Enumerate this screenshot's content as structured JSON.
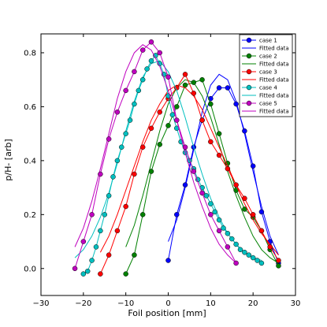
{
  "chart_data": {
    "type": "line",
    "title": "",
    "xlabel": "Foil position [mm]",
    "ylabel": "p/H- [arb]",
    "xlim": [
      -30,
      30
    ],
    "ylim": [
      -0.1,
      0.87
    ],
    "xticks": [
      -30,
      -20,
      -10,
      0,
      10,
      20,
      30
    ],
    "xtick_labels": [
      "−30",
      "−20",
      "−10",
      "0",
      "10",
      "20",
      "30"
    ],
    "yticks": [
      0.0,
      0.2,
      0.4,
      0.6,
      0.8
    ],
    "ytick_labels": [
      "0.0",
      "0.2",
      "0.4",
      "0.6",
      "0.8"
    ],
    "grid": false,
    "legend_position": "top-right",
    "legend": [
      "case 1",
      "Fitted data",
      "case 2",
      "Fitted data",
      "case 3",
      "Fitted data",
      "case 4",
      "Fitted data",
      "case 5",
      "Fitted data"
    ],
    "series": [
      {
        "name": "case 1",
        "fit_name": "Fitted data",
        "color": "#0000ff",
        "x": [
          0,
          2,
          4,
          6,
          8,
          10,
          12,
          14,
          16,
          18,
          20,
          22,
          24,
          26
        ],
        "y": [
          0.03,
          0.2,
          0.31,
          0.45,
          0.55,
          0.63,
          0.67,
          0.67,
          0.61,
          0.51,
          0.38,
          0.21,
          0.1,
          0.02
        ],
        "fit_x": [
          0,
          2,
          4,
          6,
          8,
          10,
          12,
          14,
          16,
          18,
          20,
          22,
          24,
          26
        ],
        "fit_y": [
          0.1,
          0.18,
          0.3,
          0.44,
          0.58,
          0.68,
          0.72,
          0.7,
          0.62,
          0.5,
          0.36,
          0.23,
          0.12,
          0.05
        ]
      },
      {
        "name": "case 2",
        "fit_name": "Fitted data",
        "color": "#008000",
        "x": [
          -10,
          -8,
          -6,
          -4,
          -2,
          0,
          2,
          4,
          6,
          8,
          10,
          12,
          14,
          16,
          18,
          20,
          22,
          24,
          26
        ],
        "y": [
          -0.02,
          0.05,
          0.2,
          0.36,
          0.46,
          0.53,
          0.6,
          0.68,
          0.69,
          0.7,
          0.61,
          0.5,
          0.39,
          0.29,
          0.22,
          0.19,
          0.14,
          0.07,
          0.01
        ],
        "fit_x": [
          -10,
          -8,
          -6,
          -4,
          -2,
          0,
          2,
          4,
          6,
          8,
          10,
          12,
          14,
          16,
          18,
          20,
          22,
          24,
          26
        ],
        "fit_y": [
          0.08,
          0.16,
          0.27,
          0.39,
          0.51,
          0.61,
          0.67,
          0.7,
          0.69,
          0.64,
          0.56,
          0.46,
          0.36,
          0.27,
          0.19,
          0.12,
          0.07,
          0.04,
          0.02
        ]
      },
      {
        "name": "case 3",
        "fit_name": "Fitted data",
        "color": "#ff0000",
        "x": [
          -16,
          -14,
          -12,
          -10,
          -8,
          -6,
          -4,
          -2,
          0,
          2,
          4,
          6,
          8,
          10,
          12,
          14,
          16,
          18,
          20,
          22,
          24,
          26
        ],
        "y": [
          -0.02,
          0.05,
          0.14,
          0.23,
          0.35,
          0.45,
          0.52,
          0.58,
          0.63,
          0.67,
          0.72,
          0.65,
          0.55,
          0.47,
          0.42,
          0.37,
          0.31,
          0.26,
          0.2,
          0.14,
          0.08,
          0.03
        ],
        "fit_x": [
          -16,
          -14,
          -12,
          -10,
          -8,
          -6,
          -4,
          -2,
          0,
          2,
          4,
          6,
          8,
          10,
          12,
          14,
          16,
          18,
          20,
          22,
          24,
          26
        ],
        "fit_y": [
          0.06,
          0.12,
          0.2,
          0.29,
          0.38,
          0.47,
          0.55,
          0.61,
          0.66,
          0.68,
          0.67,
          0.64,
          0.59,
          0.52,
          0.45,
          0.38,
          0.31,
          0.24,
          0.18,
          0.13,
          0.09,
          0.05
        ]
      },
      {
        "name": "case 4",
        "fit_name": "Fitted data",
        "color": "#00bfbf",
        "x": [
          -20,
          -19,
          -18,
          -17,
          -16,
          -15,
          -14,
          -13,
          -12,
          -11,
          -10,
          -9,
          -8,
          -7,
          -6,
          -5,
          -4,
          -3,
          -2,
          -1,
          0,
          1,
          2,
          3,
          4,
          5,
          6,
          7,
          8,
          9,
          10,
          11,
          12,
          13,
          14,
          15,
          16,
          17,
          18,
          19,
          20,
          21,
          22
        ],
        "y": [
          -0.02,
          -0.01,
          0.03,
          0.08,
          0.14,
          0.2,
          0.27,
          0.34,
          0.4,
          0.45,
          0.5,
          0.55,
          0.61,
          0.66,
          0.7,
          0.74,
          0.77,
          0.79,
          0.76,
          0.72,
          0.64,
          0.57,
          0.52,
          0.47,
          0.43,
          0.4,
          0.37,
          0.33,
          0.3,
          0.27,
          0.24,
          0.21,
          0.18,
          0.15,
          0.13,
          0.11,
          0.09,
          0.07,
          0.06,
          0.05,
          0.04,
          0.03,
          0.02
        ],
        "fit_x": [
          -22,
          -20,
          -18,
          -16,
          -14,
          -12,
          -10,
          -8,
          -6,
          -4,
          -2,
          0,
          2,
          4,
          6,
          8,
          10,
          12,
          14,
          16,
          18,
          20,
          22
        ],
        "fit_y": [
          0.04,
          0.07,
          0.12,
          0.19,
          0.28,
          0.39,
          0.51,
          0.62,
          0.71,
          0.76,
          0.77,
          0.73,
          0.66,
          0.56,
          0.45,
          0.35,
          0.26,
          0.19,
          0.13,
          0.09,
          0.06,
          0.04,
          0.03
        ]
      },
      {
        "name": "case 5",
        "fit_name": "Fitted data",
        "color": "#bf00bf",
        "x": [
          -22,
          -20,
          -18,
          -16,
          -14,
          -12,
          -10,
          -8,
          -6,
          -4,
          -2,
          0,
          2,
          4,
          6,
          8,
          10,
          12,
          14,
          16
        ],
        "y": [
          0.0,
          0.1,
          0.2,
          0.35,
          0.48,
          0.58,
          0.66,
          0.73,
          0.81,
          0.84,
          0.8,
          0.71,
          0.55,
          0.45,
          0.36,
          0.28,
          0.2,
          0.14,
          0.08,
          0.02
        ],
        "fit_x": [
          -22,
          -20,
          -18,
          -16,
          -14,
          -12,
          -10,
          -8,
          -6,
          -4,
          -2,
          0,
          2,
          4,
          6,
          8,
          10,
          12,
          14,
          16
        ],
        "fit_y": [
          0.08,
          0.15,
          0.25,
          0.37,
          0.5,
          0.63,
          0.73,
          0.8,
          0.83,
          0.81,
          0.75,
          0.66,
          0.55,
          0.43,
          0.32,
          0.23,
          0.15,
          0.09,
          0.05,
          0.02
        ]
      }
    ]
  }
}
